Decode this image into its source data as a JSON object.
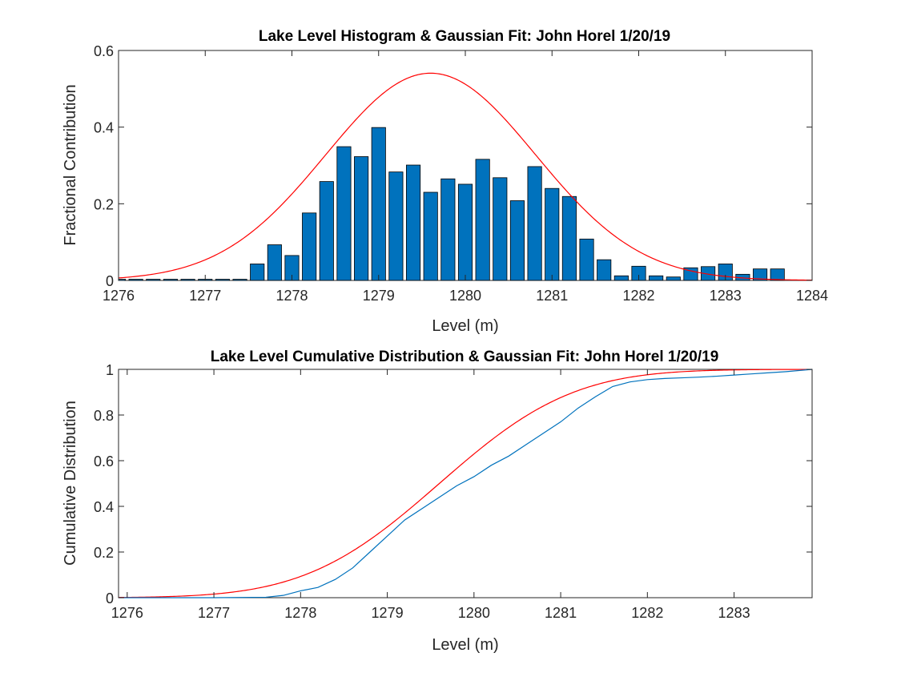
{
  "chart_data": [
    {
      "type": "bar",
      "title": "Lake Level Histogram & Gaussian Fit: John Horel 1/20/19",
      "xlabel": "Level (m)",
      "ylabel": "Fractional Contribution",
      "xlim": [
        1276,
        1284
      ],
      "ylim": [
        0,
        0.6
      ],
      "xticks": [
        "1276",
        "1277",
        "1278",
        "1279",
        "1280",
        "1281",
        "1282",
        "1283",
        "1284"
      ],
      "yticks": [
        "0",
        "0.2",
        "0.4",
        "0.6"
      ],
      "grid": false,
      "bar_color": "#0072BD",
      "fit_color": "#FF0000",
      "bins": {
        "x": [
          1276.0,
          1276.2,
          1276.4,
          1276.6,
          1276.8,
          1277.0,
          1277.2,
          1277.4,
          1277.6,
          1277.8,
          1278.0,
          1278.2,
          1278.4,
          1278.6,
          1278.8,
          1279.0,
          1279.2,
          1279.4,
          1279.6,
          1279.8,
          1280.0,
          1280.2,
          1280.4,
          1280.6,
          1280.8,
          1281.0,
          1281.2,
          1281.4,
          1281.6,
          1281.8,
          1282.0,
          1282.2,
          1282.4,
          1282.6,
          1282.8,
          1283.0,
          1283.2,
          1283.4,
          1283.6
        ],
        "values": [
          0.003,
          0.003,
          0.003,
          0.003,
          0.003,
          0.003,
          0.003,
          0.003,
          0.043,
          0.093,
          0.065,
          0.176,
          0.258,
          0.349,
          0.323,
          0.399,
          0.283,
          0.301,
          0.23,
          0.265,
          0.251,
          0.316,
          0.268,
          0.208,
          0.297,
          0.24,
          0.219,
          0.108,
          0.054,
          0.012,
          0.037,
          0.012,
          0.009,
          0.033,
          0.036,
          0.043,
          0.016,
          0.03,
          0.03
        ],
        "width": 0.16
      },
      "gaussian_fit": {
        "mean": 1279.6,
        "sigma": 1.21
      }
    },
    {
      "type": "line",
      "title": "Lake Level Cumulative Distribution & Gaussian Fit: John Horel 1/20/19",
      "xlabel": "Level (m)",
      "ylabel": "Cumulative Distribution",
      "xlim": [
        1275.9,
        1283.9
      ],
      "ylim": [
        0,
        1
      ],
      "xticks": [
        "1276",
        "1277",
        "1278",
        "1279",
        "1280",
        "1281",
        "1282",
        "1283"
      ],
      "yticks": [
        "0",
        "0.2",
        "0.4",
        "0.6",
        "0.8",
        "1"
      ],
      "grid": false,
      "series": [
        {
          "color": "#0072BD",
          "x": [
            1275.9,
            1277.0,
            1277.6,
            1277.8,
            1278.0,
            1278.2,
            1278.4,
            1278.6,
            1278.8,
            1279.0,
            1279.2,
            1279.4,
            1279.6,
            1279.8,
            1280.0,
            1280.2,
            1280.4,
            1280.6,
            1280.8,
            1281.0,
            1281.2,
            1281.4,
            1281.6,
            1281.8,
            1282.0,
            1282.2,
            1282.4,
            1282.6,
            1282.8,
            1283.0,
            1283.2,
            1283.4,
            1283.6,
            1283.9
          ],
          "y": [
            0.0,
            0.0,
            0.002,
            0.01,
            0.03,
            0.045,
            0.08,
            0.13,
            0.2,
            0.27,
            0.34,
            0.39,
            0.44,
            0.49,
            0.53,
            0.58,
            0.62,
            0.67,
            0.72,
            0.77,
            0.83,
            0.88,
            0.925,
            0.945,
            0.955,
            0.96,
            0.963,
            0.966,
            0.97,
            0.975,
            0.98,
            0.985,
            0.99,
            1.0
          ]
        }
      ],
      "gaussian_fit": {
        "mean": 1279.6,
        "sigma": 1.21
      }
    }
  ]
}
